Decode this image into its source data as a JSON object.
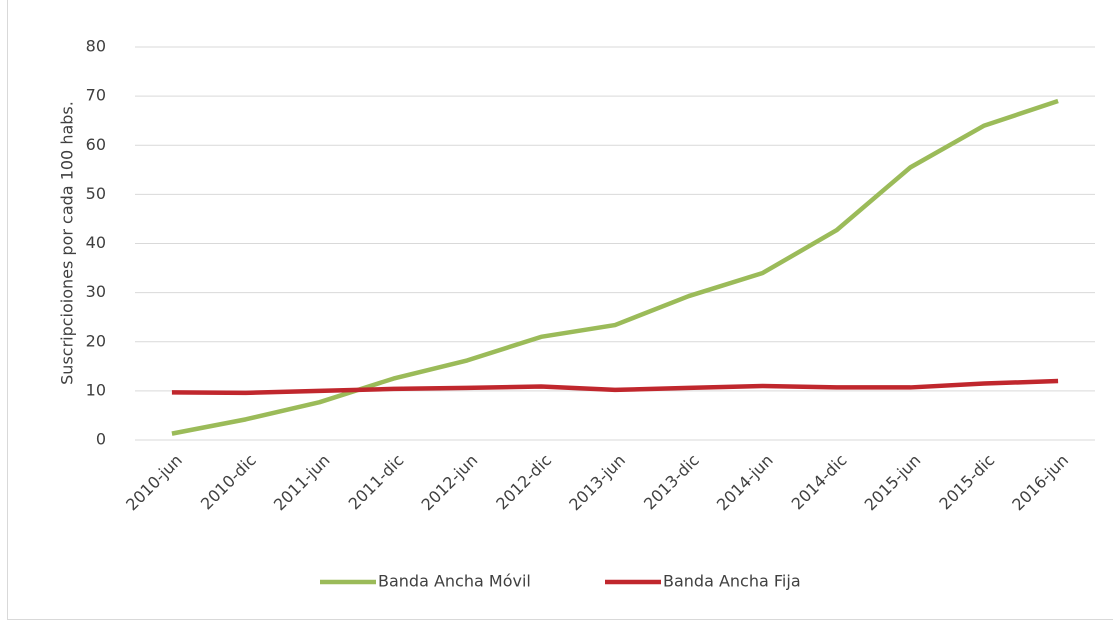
{
  "chart_data": {
    "type": "line",
    "y_label": "Suscripcioiones por cada 100 habs.",
    "categories": [
      "2010-jun",
      "2010-dic",
      "2011-jun",
      "2011-dic",
      "2012-jun",
      "2012-dic",
      "2013-jun",
      "2013-dic",
      "2014-jun",
      "2014-dic",
      "2015-jun",
      "2015-dic",
      "2016-jun"
    ],
    "series": [
      {
        "name": "Banda Ancha Móvil",
        "color": "#9bbb59",
        "values": [
          1.3,
          4.2,
          7.7,
          12.5,
          16.2,
          21,
          23.4,
          29.3,
          34,
          42.7,
          55.5,
          64,
          69
        ]
      },
      {
        "name": "Banda Ancha Fija",
        "color": "#c0272d",
        "values": [
          9.7,
          9.6,
          10,
          10.4,
          10.6,
          10.9,
          10.2,
          10.6,
          11,
          10.7,
          10.7,
          11.5,
          12
        ]
      }
    ],
    "ylim": [
      0,
      80
    ],
    "yticks": [
      0,
      10,
      20,
      30,
      40,
      50,
      60,
      70,
      80
    ],
    "grid": true,
    "legend": "bottom"
  }
}
